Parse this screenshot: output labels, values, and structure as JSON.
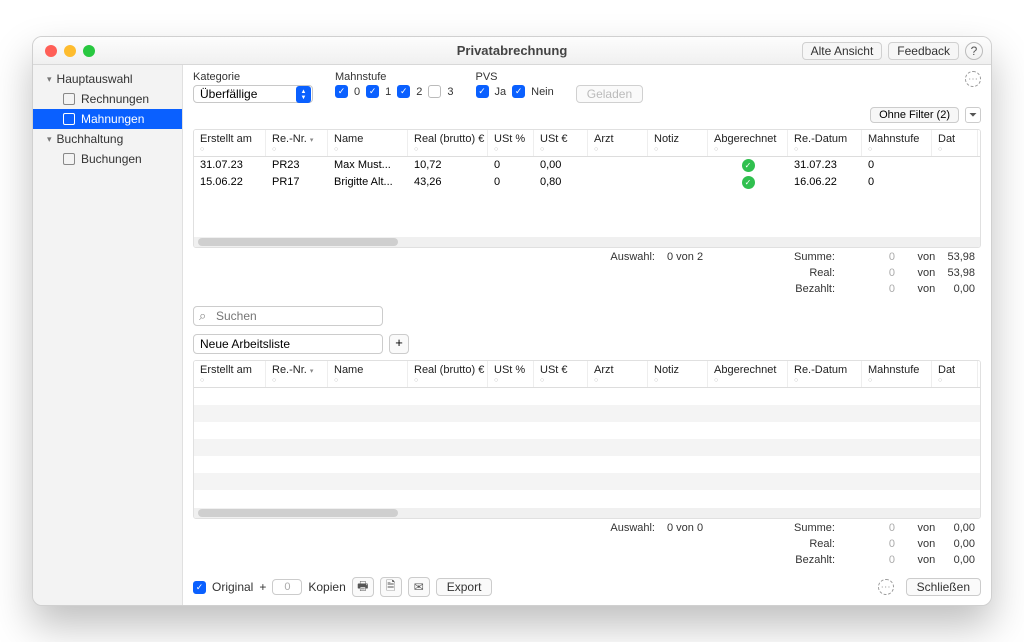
{
  "colors": {
    "accent": "#0a60ff",
    "window_bg": "#f5f5f5",
    "success": "#30c04f"
  },
  "titlebar": {
    "title": "Privatabrechnung",
    "alte_ansicht": "Alte Ansicht",
    "feedback": "Feedback",
    "help": "?"
  },
  "sidebar": {
    "groups": [
      {
        "label": "Hauptauswahl",
        "items": [
          {
            "label": "Rechnungen",
            "selected": false
          },
          {
            "label": "Mahnungen",
            "selected": true
          }
        ]
      },
      {
        "label": "Buchhaltung",
        "items": [
          {
            "label": "Buchungen",
            "selected": false
          }
        ]
      }
    ]
  },
  "filters": {
    "kategorie_label": "Kategorie",
    "kategorie_value": "Überfällige",
    "mahnstufe_label": "Mahnstufe",
    "mahnstufe": [
      {
        "label": "0",
        "checked": true
      },
      {
        "label": "1",
        "checked": true
      },
      {
        "label": "2",
        "checked": true
      },
      {
        "label": "3",
        "checked": false
      }
    ],
    "pvs_label": "PVS",
    "pvs": [
      {
        "label": "Ja",
        "checked": true
      },
      {
        "label": "Nein",
        "checked": true
      }
    ],
    "geladen_label": "Geladen",
    "ohne_filter_label": "Ohne Filter (2)"
  },
  "table": {
    "columns": [
      "Erstellt am",
      "Re.-Nr.",
      "Name",
      "Real (brutto) €",
      "USt %",
      "USt €",
      "Arzt",
      "Notiz",
      "Abgerechnet",
      "Re.-Datum",
      "Mahnstufe",
      "Dat"
    ],
    "rows": [
      {
        "erstellt": "31.07.23",
        "renr": "PR23",
        "name": "Max Must...",
        "real": "10,72",
        "ustp": "0",
        "ust": "0,00",
        "arzt": "",
        "notiz": "",
        "abg": true,
        "redatum": "31.07.23",
        "mahn": "0"
      },
      {
        "erstellt": "15.06.22",
        "renr": "PR17",
        "name": "Brigitte Alt...",
        "real": "43,26",
        "ustp": "0",
        "ust": "0,80",
        "arzt": "",
        "notiz": "",
        "abg": true,
        "redatum": "16.06.22",
        "mahn": "0"
      }
    ],
    "summary": {
      "auswahl_label": "Auswahl:",
      "auswahl_val": "0 von 2",
      "summe_label": "Summe:",
      "summe_a": "0",
      "summe_von": "von",
      "summe_b": "53,98",
      "real_label": "Real:",
      "real_a": "0",
      "real_b": "53,98",
      "bezahlt_label": "Bezahlt:",
      "bezahlt_a": "0",
      "bezahlt_b": "0,00"
    }
  },
  "search": {
    "placeholder": "Suchen"
  },
  "worklist": {
    "value": "Neue Arbeitsliste"
  },
  "table2": {
    "columns": [
      "Erstellt am",
      "Re.-Nr.",
      "Name",
      "Real (brutto) €",
      "USt %",
      "USt €",
      "Arzt",
      "Notiz",
      "Abgerechnet",
      "Re.-Datum",
      "Mahnstufe",
      "Dat"
    ],
    "summary": {
      "auswahl_label": "Auswahl:",
      "auswahl_val": "0 von 0",
      "summe_label": "Summe:",
      "summe_a": "0",
      "summe_von": "von",
      "summe_b": "0,00",
      "real_label": "Real:",
      "real_a": "0",
      "real_b": "0,00",
      "bezahlt_label": "Bezahlt:",
      "bezahlt_a": "0",
      "bezahlt_b": "0,00"
    }
  },
  "footer": {
    "original_label": "Original",
    "plus": "+",
    "kopien_val": "0",
    "kopien_label": "Kopien",
    "export_label": "Export",
    "schliessen_label": "Schließen"
  }
}
